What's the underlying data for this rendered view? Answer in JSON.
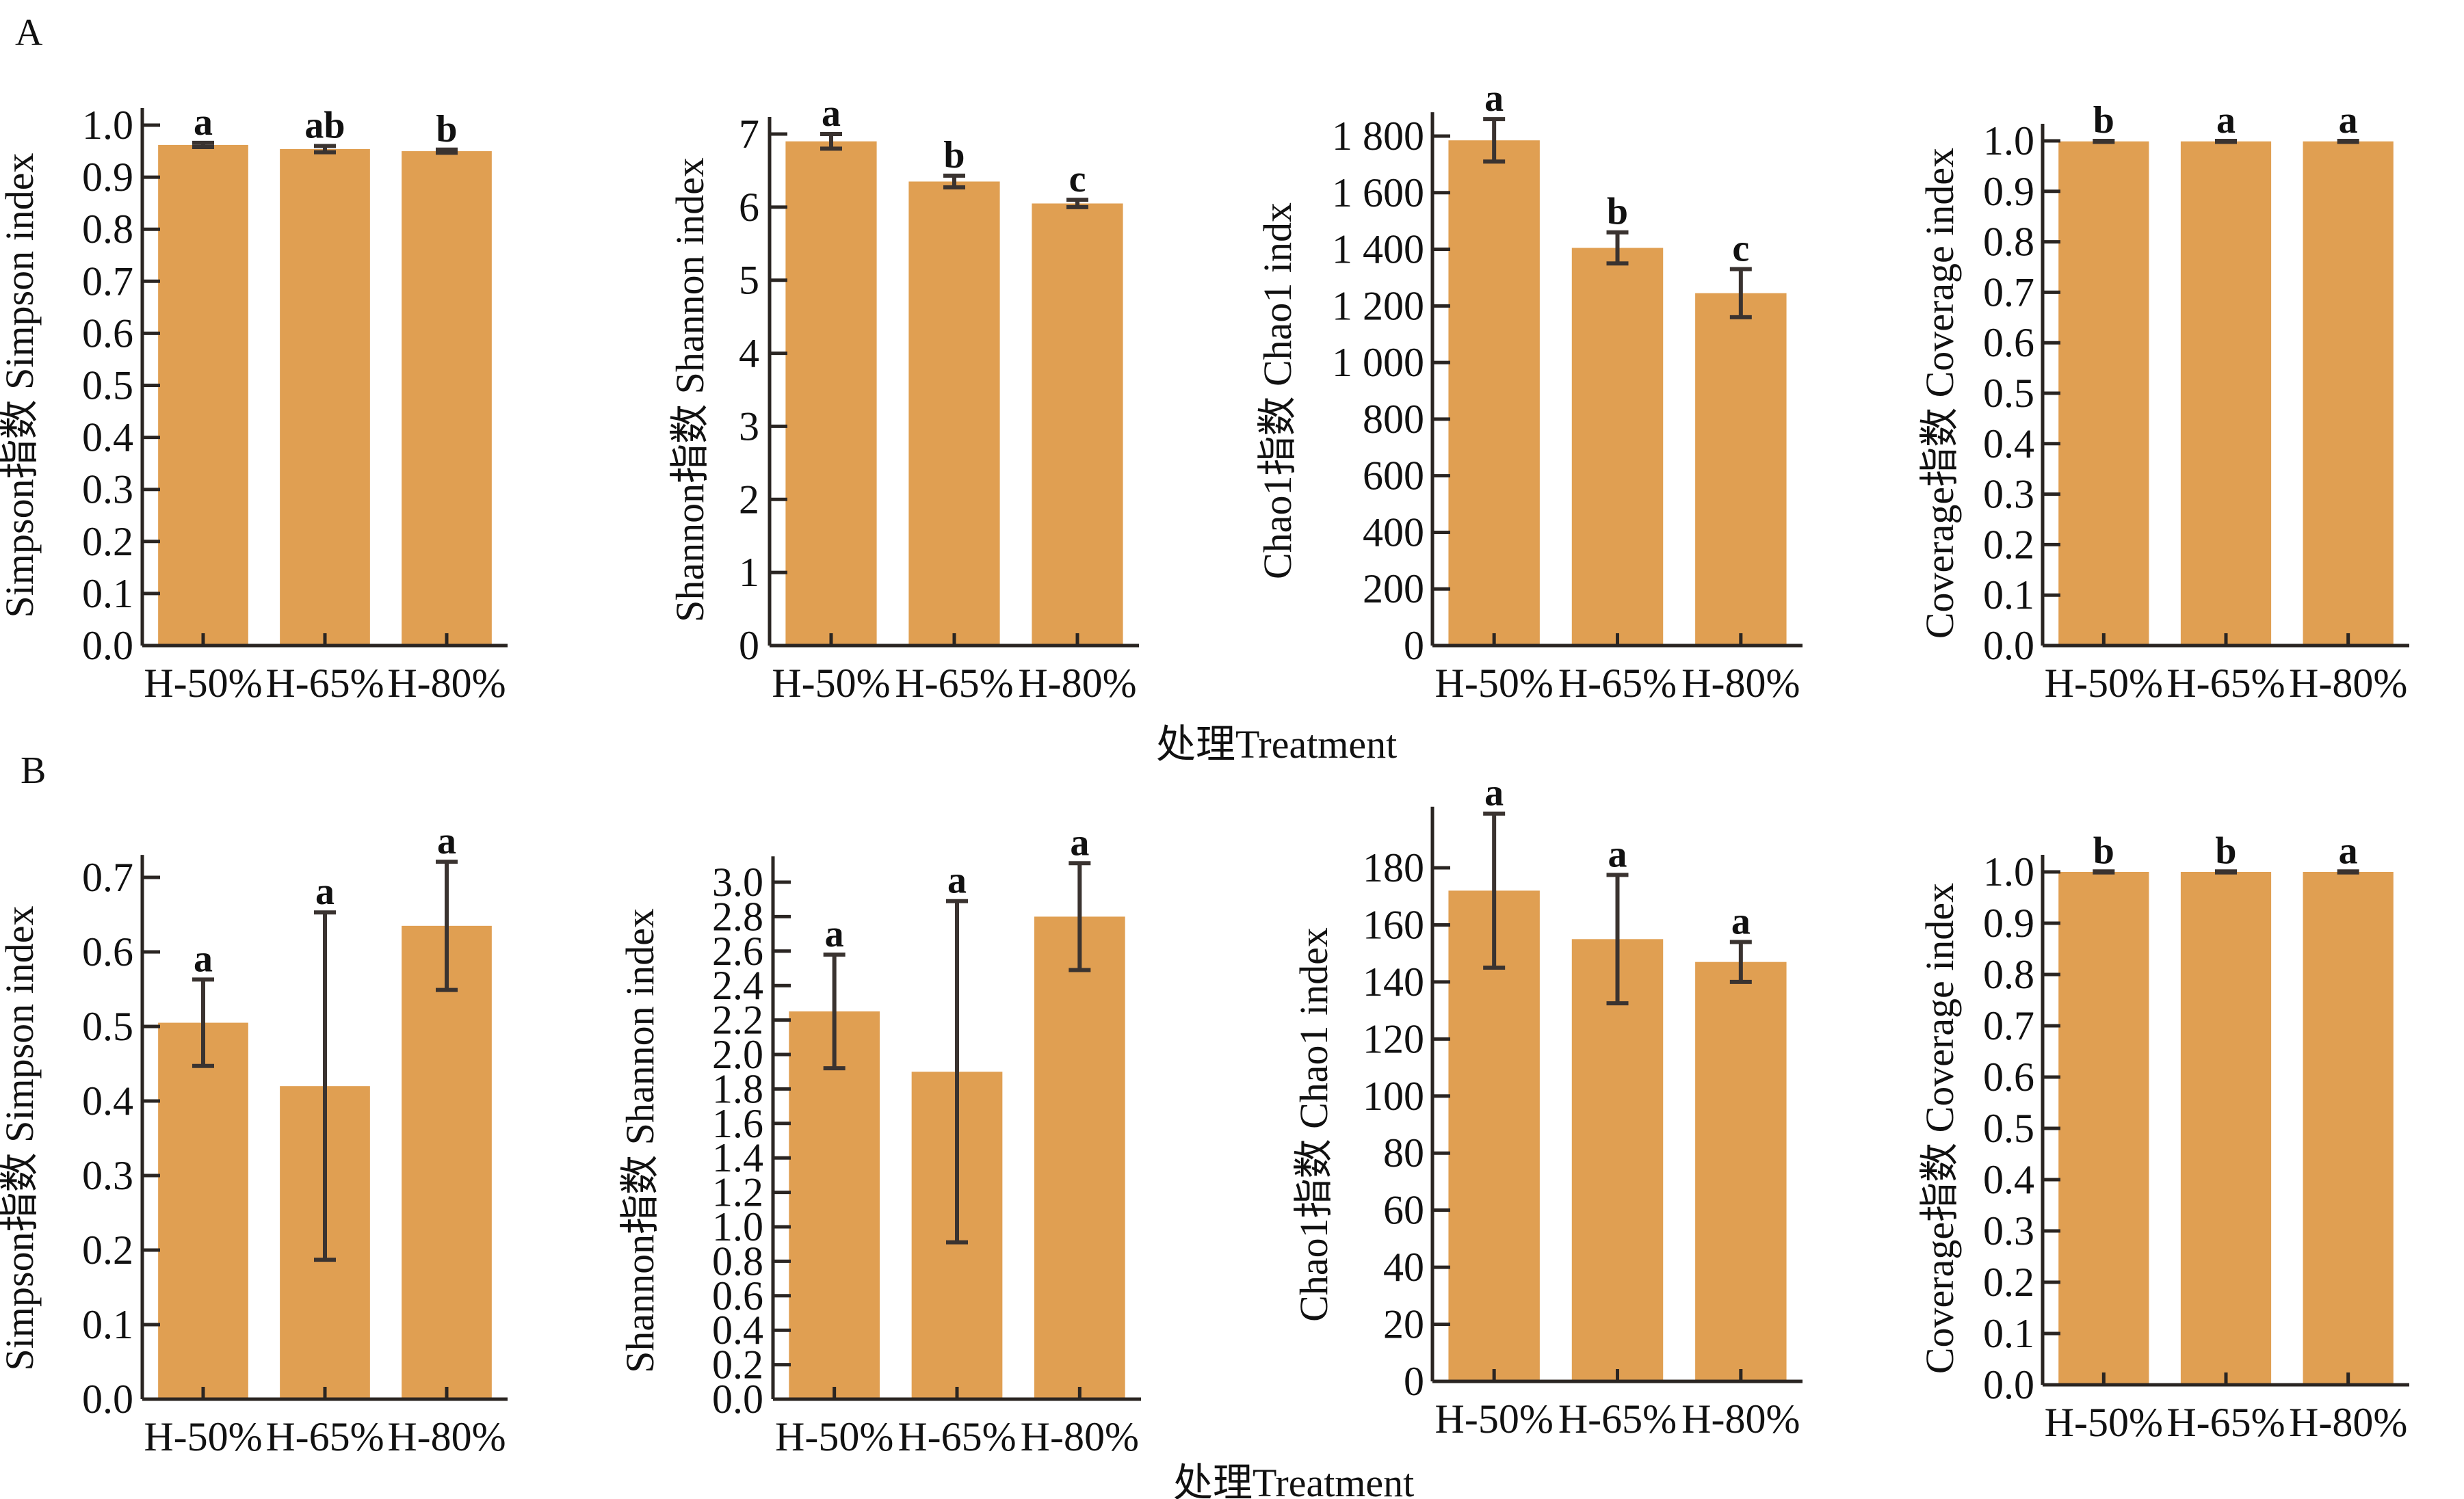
{
  "figure": {
    "panel_labels": [
      "A",
      "B"
    ],
    "x_title": "处理Treatment",
    "bar_color": "#E09F52",
    "errorbar_color": "#3A3330"
  },
  "chart_data": [
    {
      "id": "A-simpson",
      "panel": "A",
      "type": "bar",
      "ylabel": "Simpson指数  Simpson index",
      "categories": [
        "H-50%",
        "H-65%",
        "H-80%"
      ],
      "values": [
        0.962,
        0.954,
        0.95
      ],
      "error": [
        0.004,
        0.006,
        0.003
      ],
      "significance": [
        "a",
        "ab",
        "b"
      ],
      "ylim": [
        0,
        1.0
      ],
      "yticks": [
        0.0,
        0.1,
        0.2,
        0.3,
        0.4,
        0.5,
        0.6,
        0.7,
        0.8,
        0.9,
        1.0
      ],
      "ytick_labels": [
        "0.0",
        "0.1",
        "0.2",
        "0.3",
        "0.4",
        "0.5",
        "0.6",
        "0.7",
        "0.8",
        "0.9",
        "1.0"
      ]
    },
    {
      "id": "A-shannon",
      "panel": "A",
      "type": "bar",
      "ylabel": "Shannon指数  Shannon index",
      "categories": [
        "H-50%",
        "H-65%",
        "H-80%"
      ],
      "values": [
        6.9,
        6.35,
        6.05
      ],
      "error": [
        0.1,
        0.08,
        0.05
      ],
      "significance": [
        "a",
        "b",
        "c"
      ],
      "ylim": [
        0,
        7
      ],
      "yticks": [
        0,
        1,
        2,
        3,
        4,
        5,
        6,
        7
      ],
      "ytick_labels": [
        "0",
        "1",
        "2",
        "3",
        "4",
        "5",
        "6",
        "7"
      ]
    },
    {
      "id": "A-chao1",
      "panel": "A",
      "type": "bar",
      "ylabel": "Chao1指数  Chao1 indx",
      "categories": [
        "H-50%",
        "H-65%",
        "H-80%"
      ],
      "values": [
        1785,
        1405,
        1245
      ],
      "error": [
        75,
        55,
        85
      ],
      "significance": [
        "a",
        "b",
        "c"
      ],
      "ylim": [
        0,
        1800
      ],
      "yticks": [
        0,
        200,
        400,
        600,
        800,
        1000,
        1200,
        1400,
        1600,
        1800
      ],
      "ytick_labels": [
        "0",
        "200",
        "400",
        "600",
        "800",
        "1 000",
        "1 200",
        "1 400",
        "1 600",
        "1 800"
      ]
    },
    {
      "id": "A-coverage",
      "panel": "A",
      "type": "bar",
      "ylabel": "Coverage指数  Coverage index",
      "categories": [
        "H-50%",
        "H-65%",
        "H-80%"
      ],
      "values": [
        0.999,
        0.999,
        0.999
      ],
      "error": [
        0.001,
        0.001,
        0.001
      ],
      "significance": [
        "b",
        "a",
        "a"
      ],
      "ylim": [
        0,
        1.0
      ],
      "yticks": [
        0.0,
        0.1,
        0.2,
        0.3,
        0.4,
        0.5,
        0.6,
        0.7,
        0.8,
        0.9,
        1.0
      ],
      "ytick_labels": [
        "0.0",
        "0.1",
        "0.2",
        "0.3",
        "0.4",
        "0.5",
        "0.6",
        "0.7",
        "0.8",
        "0.9",
        "1.0"
      ]
    },
    {
      "id": "B-simpson",
      "panel": "B",
      "type": "bar",
      "ylabel": "Simpson指数  Simpson index",
      "categories": [
        "H-50%",
        "H-65%",
        "H-80%"
      ],
      "values": [
        0.505,
        0.42,
        0.635
      ],
      "error": [
        0.058,
        0.233,
        0.086
      ],
      "significance": [
        "a",
        "a",
        "a"
      ],
      "ylim": [
        0,
        0.7
      ],
      "yticks": [
        0.0,
        0.1,
        0.2,
        0.3,
        0.4,
        0.5,
        0.6,
        0.7
      ],
      "ytick_labels": [
        "0.0",
        "0.1",
        "0.2",
        "0.3",
        "0.4",
        "0.5",
        "0.6",
        "0.7"
      ]
    },
    {
      "id": "B-shannon",
      "panel": "B",
      "type": "bar",
      "ylabel": "Shannon指数  Shannon index",
      "categories": [
        "H-50%",
        "H-65%",
        "H-80%"
      ],
      "values": [
        2.25,
        1.9,
        2.8
      ],
      "error": [
        0.33,
        0.99,
        0.31
      ],
      "significance": [
        "a",
        "a",
        "a"
      ],
      "ylim": [
        0,
        3.0
      ],
      "yticks": [
        0.0,
        0.2,
        0.4,
        0.6,
        0.8,
        1.0,
        1.2,
        1.4,
        1.6,
        1.8,
        2.0,
        2.2,
        2.4,
        2.6,
        2.8,
        3.0
      ],
      "ytick_labels": [
        "0.0",
        "0.2",
        "0.4",
        "0.6",
        "0.8",
        "1.0",
        "1.2",
        "1.4",
        "1.6",
        "1.8",
        "2.0",
        "2.2",
        "2.4",
        "2.6",
        "2.8",
        "3.0"
      ]
    },
    {
      "id": "B-chao1",
      "panel": "B",
      "type": "bar",
      "ylabel": "Chao1指数  Chao1 index",
      "categories": [
        "H-50%",
        "H-65%",
        "H-80%"
      ],
      "values": [
        172,
        155,
        147
      ],
      "error": [
        27,
        22.5,
        7
      ],
      "significance": [
        "a",
        "a",
        "a"
      ],
      "ylim": [
        0,
        180
      ],
      "yticks": [
        0,
        20,
        40,
        60,
        80,
        100,
        120,
        140,
        160,
        180
      ],
      "ytick_labels": [
        "0",
        "20",
        "40",
        "60",
        "80",
        "100",
        "120",
        "140",
        "160",
        "180"
      ]
    },
    {
      "id": "B-coverage",
      "panel": "B",
      "type": "bar",
      "ylabel": "Coverage指数  Coverage index",
      "categories": [
        "H-50%",
        "H-65%",
        "H-80%"
      ],
      "values": [
        1.0,
        1.0,
        1.0
      ],
      "error": [
        0.001,
        0.001,
        0.001
      ],
      "significance": [
        "b",
        "b",
        "a"
      ],
      "ylim": [
        0,
        1.0
      ],
      "yticks": [
        0.0,
        0.1,
        0.2,
        0.3,
        0.4,
        0.5,
        0.6,
        0.7,
        0.8,
        0.9,
        1.0
      ],
      "ytick_labels": [
        "0.0",
        "0.1",
        "0.2",
        "0.3",
        "0.4",
        "0.5",
        "0.6",
        "0.7",
        "0.8",
        "0.9",
        "1.0"
      ]
    }
  ]
}
